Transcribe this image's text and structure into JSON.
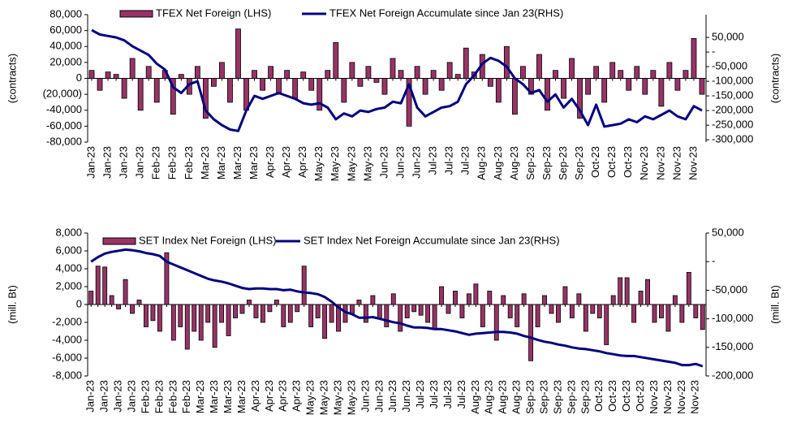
{
  "chart_data": [
    {
      "type": "bar-line",
      "ylabel": "(contracts)",
      "y2label": "(contracts)",
      "categories": [
        "Jan-23",
        null,
        "Jan-23",
        null,
        "Jan-23",
        null,
        "Jan-23",
        null,
        "Feb-23",
        null,
        "Feb-23",
        null,
        "Feb-23",
        null,
        "Mar-23",
        null,
        "Mar-23",
        null,
        "Mar-23",
        null,
        "Mar-23",
        null,
        "Apr-23",
        null,
        "Apr-23",
        null,
        "Apr-23",
        null,
        "May-23",
        null,
        "May-23",
        null,
        "May-23",
        null,
        "May-23",
        null,
        "Jun-23",
        null,
        "Jun-23",
        null,
        "Jun-23",
        null,
        "Jul-23",
        null,
        "Jul-23",
        null,
        "Jul-23",
        null,
        "Aug-23",
        null,
        "Aug-23",
        null,
        "Aug-23",
        null,
        "Sep-23",
        null,
        "Sep-23",
        null,
        "Sep-23",
        null,
        "Sep-23",
        null,
        "Oct-23",
        null,
        "Oct-23",
        null,
        "Oct-23",
        null,
        "Nov-23",
        null,
        "Nov-23",
        null,
        "Nov-23",
        null,
        "Nov-23",
        null
      ],
      "series": [
        {
          "name": "TFEX Net Foreign (LHS)",
          "type": "bar",
          "color": "#993366",
          "values": [
            10000,
            -15000,
            8000,
            5000,
            -25000,
            25000,
            -40000,
            15000,
            -30000,
            10000,
            -45000,
            5000,
            -20000,
            15000,
            -50000,
            -10000,
            20000,
            -30000,
            62000,
            -40000,
            10000,
            -15000,
            15000,
            -20000,
            10000,
            -25000,
            8000,
            -15000,
            -40000,
            10000,
            45000,
            -30000,
            20000,
            -10000,
            15000,
            -5000,
            -20000,
            25000,
            10000,
            -60000,
            15000,
            -20000,
            10000,
            -15000,
            20000,
            5000,
            38000,
            8000,
            30000,
            -10000,
            -30000,
            40000,
            -45000,
            15000,
            -20000,
            30000,
            -40000,
            10000,
            -25000,
            25000,
            -50000,
            -20000,
            15000,
            -30000,
            20000,
            10000,
            -15000,
            15000,
            -20000,
            10000,
            -35000,
            20000,
            -15000,
            10000,
            50000,
            -20000
          ]
        },
        {
          "name": "TFEX Net Foreign Accumulate since Jan 23(RHS)",
          "type": "line",
          "axis": "y2",
          "color": "#000080",
          "values": [
            75000,
            60000,
            55000,
            50000,
            40000,
            20000,
            5000,
            -10000,
            -40000,
            -60000,
            -120000,
            -140000,
            -110000,
            -100000,
            -200000,
            -230000,
            -250000,
            -265000,
            -270000,
            -200000,
            -150000,
            -160000,
            -150000,
            -140000,
            -150000,
            -160000,
            -175000,
            -180000,
            -175000,
            -190000,
            -230000,
            -210000,
            -220000,
            -200000,
            -205000,
            -195000,
            -190000,
            -170000,
            -175000,
            -110000,
            -190000,
            -220000,
            -205000,
            -190000,
            -185000,
            -170000,
            -110000,
            -80000,
            -40000,
            -20000,
            -30000,
            -50000,
            -90000,
            -110000,
            -140000,
            -130000,
            -170000,
            -145000,
            -190000,
            -160000,
            -200000,
            -250000,
            -180000,
            -255000,
            -250000,
            -245000,
            -230000,
            -240000,
            -220000,
            -230000,
            -215000,
            -200000,
            -220000,
            -230000,
            -185000,
            -200000
          ]
        }
      ],
      "ylim": [
        -80000,
        80000
      ],
      "yticks": [
        {
          "value": 80000,
          "label": "80,000"
        },
        {
          "value": 60000,
          "label": "60,000"
        },
        {
          "value": 40000,
          "label": "40,000"
        },
        {
          "value": 20000,
          "label": "20,000"
        },
        0,
        {
          "value": -20000,
          "label": "(20,000)"
        },
        {
          "value": -40000,
          "label": "-40,000"
        },
        {
          "value": -60000,
          "label": "-60,000"
        },
        {
          "value": -80000,
          "label": "-80,000"
        }
      ],
      "y2lim": [
        -308000,
        128000
      ],
      "y2ticks": [
        {
          "value": 50000,
          "label": "50,000"
        },
        {
          "value": 0,
          "label": "-"
        },
        {
          "value": -50000,
          "label": "-50,000"
        },
        {
          "value": -100000,
          "label": "-100,000"
        },
        {
          "value": -150000,
          "label": "-150,000"
        },
        {
          "value": -200000,
          "label": "-200,000"
        },
        {
          "value": -250000,
          "label": "-250,000"
        },
        {
          "value": -300000,
          "label": "-300,000"
        }
      ]
    },
    {
      "type": "bar-line",
      "ylabel": "(mill. Bt)",
      "y2label": "(mill. Bt)",
      "categories": [
        "Jan-23",
        null,
        "Jan-23",
        null,
        "Jan-23",
        null,
        "Jan-23",
        null,
        "Feb-23",
        null,
        "Feb-23",
        null,
        "Feb-23",
        null,
        "Feb-23",
        null,
        "Mar-23",
        null,
        "Mar-23",
        null,
        "Mar-23",
        null,
        "Mar-23",
        null,
        "Apr-23",
        null,
        "Apr-23",
        null,
        "Apr-23",
        null,
        "Apr-23",
        null,
        "May-23",
        null,
        "May-23",
        null,
        "May-23",
        null,
        "May-23",
        null,
        "Jun-23",
        null,
        "Jun-23",
        null,
        "Jun-23",
        null,
        "Jun-23",
        null,
        "Jul-23",
        null,
        "Jul-23",
        null,
        "Jul-23",
        null,
        "Jul-23",
        null,
        "Aug-23",
        null,
        "Aug-23",
        null,
        "Aug-23",
        null,
        "Aug-23",
        null,
        "Sep-23",
        null,
        "Sep-23",
        null,
        "Sep-23",
        null,
        "Sep-23",
        null,
        "Sep-23",
        null,
        "Oct-23",
        null,
        "Oct-23",
        null,
        "Oct-23",
        null,
        "Oct-23",
        null,
        "Nov-23",
        null,
        "Nov-23",
        null,
        "Nov-23",
        null,
        "Nov-23",
        null
      ],
      "series": [
        {
          "name": "SET Index Net Foreign (LHS)",
          "type": "bar",
          "color": "#993366",
          "values": [
            1500,
            4300,
            4200,
            1000,
            -500,
            2800,
            -1000,
            500,
            -2500,
            -1800,
            -3000,
            5800,
            -4000,
            -2500,
            -5000,
            -3000,
            -4000,
            -2000,
            -4800,
            -2000,
            -3500,
            -1500,
            -1000,
            500,
            -1500,
            -2000,
            -800,
            500,
            -2500,
            -2000,
            -800,
            4300,
            -2500,
            -1500,
            -3800,
            -2000,
            -3000,
            -2000,
            -1000,
            500,
            -2000,
            1000,
            -1500,
            -2500,
            1200,
            -3000,
            -1500,
            -800,
            -1200,
            -2000,
            -2800,
            2000,
            -1000,
            1500,
            -1500,
            1200,
            2300,
            -2500,
            1500,
            -4000,
            1000,
            -1500,
            -2500,
            1200,
            -6300,
            -2500,
            1000,
            -1000,
            -2000,
            2000,
            -1500,
            1200,
            -3000,
            -1000,
            -1500,
            -4500,
            1000,
            3000,
            3000,
            -2000,
            1500,
            2800,
            -2000,
            -1500,
            -3000,
            1000,
            -2000,
            3600,
            -1500,
            -2800
          ]
        },
        {
          "name": "SET Index Net Foreign Accumulate since Jan 23(RHS)",
          "type": "line",
          "axis": "y2",
          "color": "#000080",
          "values": [
            0,
            8000,
            14000,
            17000,
            19000,
            21000,
            20000,
            18000,
            15000,
            13000,
            10000,
            0,
            -5000,
            -10000,
            -15000,
            -20000,
            -25000,
            -30000,
            -33000,
            -35000,
            -38000,
            -42000,
            -46000,
            -48000,
            -47000,
            -47000,
            -48000,
            -48000,
            -50000,
            -49000,
            -52000,
            -54000,
            -55000,
            -57000,
            -62000,
            -70000,
            -80000,
            -88000,
            -92000,
            -98000,
            -98000,
            -97000,
            -100000,
            -103000,
            -106000,
            -108000,
            -112000,
            -115000,
            -115000,
            -116000,
            -118000,
            -118000,
            -120000,
            -122000,
            -125000,
            -128000,
            -126000,
            -125000,
            -124000,
            -123000,
            -123000,
            -124000,
            -126000,
            -130000,
            -133000,
            -137000,
            -140000,
            -142000,
            -145000,
            -147000,
            -150000,
            -152000,
            -153000,
            -155000,
            -157000,
            -160000,
            -162000,
            -164000,
            -165000,
            -165000,
            -167000,
            -169000,
            -171000,
            -173000,
            -175000,
            -177000,
            -181000,
            -181000,
            -179000,
            -183000
          ]
        }
      ],
      "ylim": [
        -8000,
        8000
      ],
      "yticks": [
        {
          "value": 8000,
          "label": "8,000"
        },
        {
          "value": 6000,
          "label": "6,000"
        },
        {
          "value": 4000,
          "label": "4,000"
        },
        {
          "value": 2000,
          "label": "2,000"
        },
        0,
        {
          "value": -2000,
          "label": "-2,000"
        },
        {
          "value": -4000,
          "label": "-4,000"
        },
        {
          "value": -6000,
          "label": "-6,000"
        },
        {
          "value": -8000,
          "label": "-8,000"
        }
      ],
      "y2lim": [
        -200000,
        50000
      ],
      "y2ticks": [
        {
          "value": 50000,
          "label": "50,000"
        },
        {
          "value": 0,
          "label": "-"
        },
        {
          "value": -50000,
          "label": "-50,000"
        },
        {
          "value": -100000,
          "label": "-100,000"
        },
        {
          "value": -150000,
          "label": "-150,000"
        },
        {
          "value": -200000,
          "label": "-200,000"
        }
      ]
    }
  ]
}
